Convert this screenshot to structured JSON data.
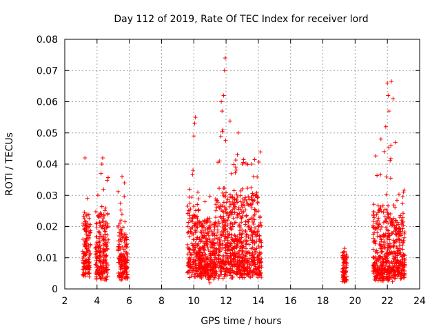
{
  "chart_data": {
    "type": "scatter",
    "title": "Day 112 of 2019, Rate Of TEC Index for receiver lord",
    "xlabel": "GPS time / hours",
    "ylabel": "ROTI / TECUs",
    "xlim": [
      2,
      24
    ],
    "ylim": [
      0,
      0.08
    ],
    "x_ticks": [
      "2",
      "4",
      "6",
      "8",
      "10",
      "12",
      "14",
      "16",
      "18",
      "20",
      "22",
      "24"
    ],
    "y_ticks": [
      "0",
      "0.01",
      "0.02",
      "0.03",
      "0.04",
      "0.05",
      "0.06",
      "0.07",
      "0.08"
    ],
    "grid": true,
    "marker": "plus",
    "color": "#ff0000",
    "clusters": [
      {
        "x_start": 3.1,
        "x_end": 3.6,
        "y_base": 0.006,
        "y_spread": 0.018,
        "peak": 0.028,
        "outliers": [
          [
            3.25,
            0.042
          ],
          [
            3.4,
            0.029
          ]
        ]
      },
      {
        "x_start": 3.9,
        "x_end": 4.7,
        "y_base": 0.005,
        "y_spread": 0.02,
        "peak": 0.037,
        "outliers": [
          [
            4.35,
            0.042
          ],
          [
            4.3,
            0.04
          ],
          [
            4.25,
            0.037
          ]
        ]
      },
      {
        "x_start": 5.3,
        "x_end": 5.9,
        "y_base": 0.005,
        "y_spread": 0.016,
        "peak": 0.035,
        "outliers": [
          [
            5.55,
            0.036
          ],
          [
            5.7,
            0.034
          ]
        ]
      },
      {
        "x_start": 9.6,
        "x_end": 10.4,
        "y_base": 0.006,
        "y_spread": 0.02,
        "peak": 0.038,
        "outliers": [
          [
            10.1,
            0.055
          ],
          [
            10.05,
            0.053
          ],
          [
            10.0,
            0.049
          ],
          [
            9.95,
            0.038
          ]
        ]
      },
      {
        "x_start": 10.4,
        "x_end": 11.3,
        "y_base": 0.005,
        "y_spread": 0.017,
        "peak": 0.032,
        "outliers": [
          [
            10.9,
            0.003
          ],
          [
            11.0,
            0.002
          ]
        ]
      },
      {
        "x_start": 11.3,
        "x_end": 12.4,
        "y_base": 0.006,
        "y_spread": 0.025,
        "peak": 0.055,
        "outliers": [
          [
            11.95,
            0.074
          ],
          [
            11.9,
            0.07
          ],
          [
            11.85,
            0.062
          ],
          [
            11.7,
            0.06
          ],
          [
            11.75,
            0.057
          ],
          [
            11.8,
            0.051
          ],
          [
            11.6,
            0.041
          ]
        ]
      },
      {
        "x_start": 12.4,
        "x_end": 14.2,
        "y_base": 0.006,
        "y_spread": 0.024,
        "peak": 0.044,
        "outliers": [
          [
            12.75,
            0.05
          ],
          [
            12.7,
            0.043
          ],
          [
            13.0,
            0.04
          ],
          [
            13.6,
            0.04
          ],
          [
            13.7,
            0.036
          ]
        ]
      },
      {
        "x_start": 19.2,
        "x_end": 19.5,
        "y_base": 0.003,
        "y_spread": 0.009,
        "peak": 0.013,
        "outliers": [
          [
            19.35,
            0.013
          ],
          [
            19.35,
            0.012
          ],
          [
            19.35,
            0.007
          ],
          [
            19.35,
            0.003
          ]
        ]
      },
      {
        "x_start": 21.1,
        "x_end": 22.4,
        "y_base": 0.004,
        "y_spread": 0.022,
        "peak": 0.047,
        "outliers": [
          [
            22.0,
            0.066
          ],
          [
            22.05,
            0.062
          ],
          [
            22.1,
            0.057
          ],
          [
            21.9,
            0.052
          ],
          [
            21.6,
            0.048
          ],
          [
            21.8,
            0.044
          ]
        ]
      },
      {
        "x_start": 22.4,
        "x_end": 23.1,
        "y_base": 0.005,
        "y_spread": 0.018,
        "peak": 0.032,
        "outliers": [
          [
            22.25,
            0.0665
          ],
          [
            22.35,
            0.061
          ],
          [
            22.5,
            0.047
          ],
          [
            23.0,
            0.031
          ]
        ]
      }
    ]
  }
}
